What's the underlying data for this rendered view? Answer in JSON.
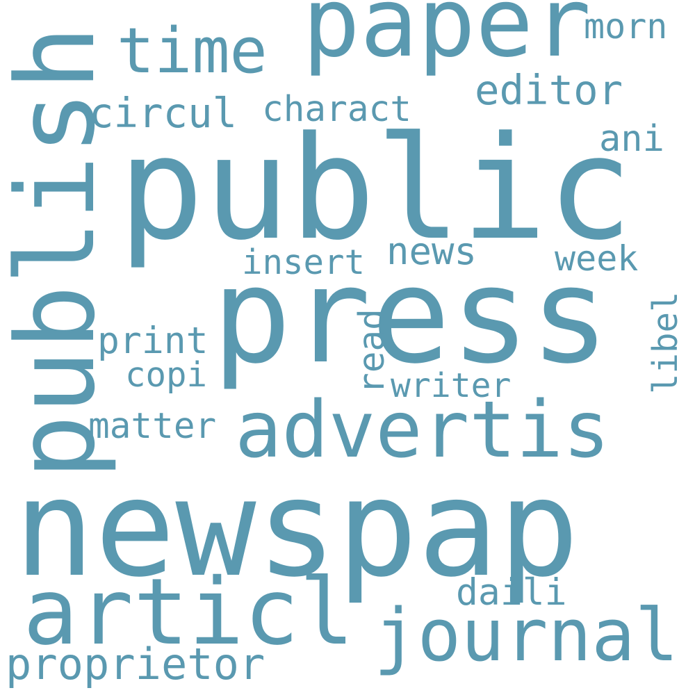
{
  "colors": {
    "text": "#5a99b0",
    "background": "#ffffff"
  },
  "words": {
    "newspap": "newspap",
    "public": "public",
    "press": "press",
    "publish": "publish",
    "paper": "paper",
    "advertis": "advertis",
    "articl": "articl",
    "journal": "journal",
    "time": "time",
    "proprietor": "proprietor",
    "editor": "editor",
    "circul": "circul",
    "charact": "charact",
    "morn": "morn",
    "ani": "ani",
    "news": "news",
    "insert": "insert",
    "week": "week",
    "read": "read",
    "libel": "libel",
    "print": "print",
    "copi": "copi",
    "writer": "writer",
    "matter": "matter",
    "daili": "daili"
  }
}
